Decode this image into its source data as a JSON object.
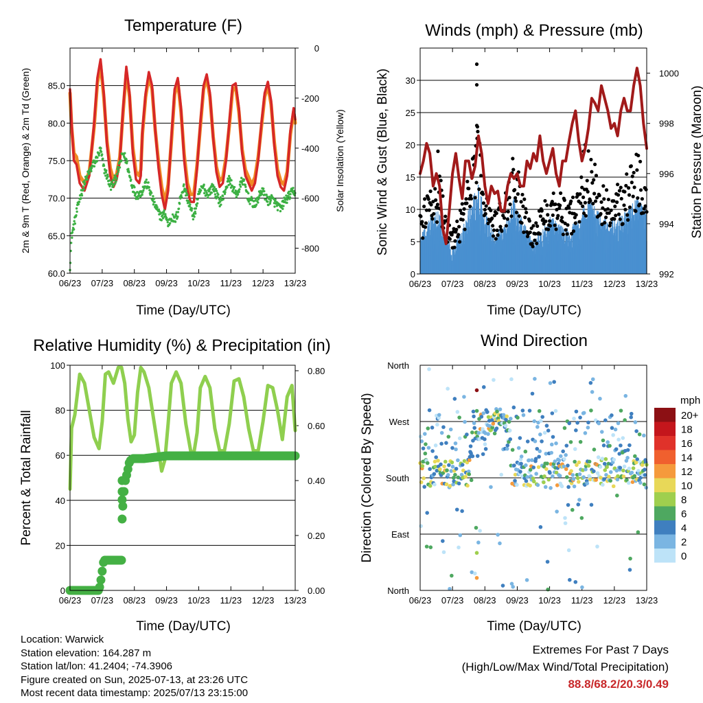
{
  "colors": {
    "temp_2m": "#d62728",
    "temp_9m": "#f08a24",
    "dewpoint": "#3cb043",
    "wind": "#4a90d0",
    "gust": "#000000",
    "pressure": "#a11a1a",
    "rh": "#8fcf4f",
    "precip": "#44b044",
    "extremes": "#c8282a"
  },
  "time_ticks": [
    "06/23",
    "07/23",
    "08/23",
    "09/23",
    "10/23",
    "11/23",
    "12/23",
    "13/23"
  ],
  "chart_data": [
    {
      "id": "temperature",
      "type": "line",
      "title": "Temperature (F)",
      "xlabel": "Time (Day/UTC)",
      "ylabel": "2m & 9m T (Red, Orange) & 2m Td (Green)",
      "ylabel_right": "Solar Insolation (Yellow)",
      "ylim": [
        60,
        90
      ],
      "y_ticks": [
        "60.0",
        "65.0",
        "70.0",
        "75.0",
        "80.0",
        "85.0"
      ],
      "y2lim": [
        -900,
        0
      ],
      "y2_ticks": [
        "-800",
        "-600",
        "-400",
        "-200",
        "0"
      ],
      "xlim": [
        6,
        13
      ],
      "series": [
        {
          "color_key": "temp_2m",
          "x": [
            6.0,
            6.05,
            6.12,
            6.2,
            6.3,
            6.45,
            6.6,
            6.75,
            6.85,
            6.95,
            7.05,
            7.15,
            7.25,
            7.35,
            7.45,
            7.55,
            7.65,
            7.75,
            7.85,
            7.95,
            8.05,
            8.15,
            8.2,
            8.25,
            8.35,
            8.45,
            8.55,
            8.65,
            8.75,
            8.85,
            8.95,
            9.05,
            9.15,
            9.25,
            9.35,
            9.45,
            9.55,
            9.65,
            9.75,
            9.85,
            9.95,
            10.05,
            10.15,
            10.25,
            10.35,
            10.45,
            10.55,
            10.65,
            10.75,
            10.85,
            10.95,
            11.05,
            11.15,
            11.25,
            11.35,
            11.45,
            11.55,
            11.65,
            11.75,
            11.85,
            11.95,
            12.05,
            12.15,
            12.25,
            12.35,
            12.45,
            12.55,
            12.65,
            12.75,
            12.85,
            12.95,
            13.0
          ],
          "y": [
            84.5,
            80,
            75,
            74.5,
            72,
            71,
            73,
            80,
            86,
            88.5,
            84,
            77,
            73,
            71.5,
            72.5,
            75,
            82,
            87.5,
            84,
            76,
            72.5,
            72,
            73,
            79,
            84,
            86.8,
            85,
            79,
            74,
            70.5,
            68.5,
            71,
            78,
            84.5,
            86,
            82,
            75,
            71,
            69.5,
            69.5,
            74,
            80,
            85,
            86.5,
            84,
            78,
            73.5,
            71.5,
            72,
            75,
            80,
            85,
            85.3,
            82,
            76,
            73,
            72,
            71,
            72,
            75,
            80,
            84,
            85.5,
            83,
            77,
            73,
            71.5,
            71,
            73,
            79,
            82,
            80.5
          ]
        },
        {
          "color_key": "temp_9m",
          "x": [
            6.0,
            6.05,
            6.12,
            6.2,
            6.3,
            6.45,
            6.6,
            6.75,
            6.85,
            6.95,
            7.05,
            7.15,
            7.25,
            7.35,
            7.45,
            7.55,
            7.65,
            7.75,
            7.85,
            7.95,
            8.05,
            8.15,
            8.2,
            8.25,
            8.35,
            8.45,
            8.55,
            8.65,
            8.75,
            8.85,
            8.95,
            9.05,
            9.15,
            9.25,
            9.35,
            9.45,
            9.55,
            9.65,
            9.75,
            9.85,
            9.95,
            10.05,
            10.15,
            10.25,
            10.35,
            10.45,
            10.55,
            10.65,
            10.75,
            10.85,
            10.95,
            11.05,
            11.15,
            11.25,
            11.35,
            11.45,
            11.55,
            11.65,
            11.75,
            11.85,
            11.95,
            12.05,
            12.15,
            12.25,
            12.35,
            12.45,
            12.55,
            12.65,
            12.75,
            12.85,
            12.95,
            13.0
          ],
          "y": [
            84,
            79.5,
            76,
            75.5,
            73,
            72,
            73.5,
            79.5,
            85.3,
            87.8,
            83.5,
            77.5,
            74,
            72.5,
            73.2,
            75.5,
            81.5,
            86.8,
            83.5,
            76.8,
            73.5,
            73,
            73.8,
            78.5,
            83.5,
            86.2,
            84.5,
            79,
            74.8,
            71.5,
            69.5,
            71.8,
            77.5,
            83.8,
            85.5,
            81.5,
            75.8,
            72,
            70.5,
            70.5,
            74.5,
            79.5,
            84.5,
            86,
            83.5,
            78.2,
            74.2,
            72.3,
            72.8,
            75.5,
            79.5,
            84.3,
            84.8,
            81.5,
            76.5,
            73.8,
            72.8,
            71.8,
            72.8,
            75.5,
            79.5,
            83.5,
            85,
            82.5,
            77.5,
            73.8,
            72.3,
            71.8,
            73.5,
            78.5,
            81.5,
            80
          ]
        },
        {
          "color_key": "dewpoint",
          "x": [
            6.0,
            6.05,
            6.1,
            6.2,
            6.3,
            6.45,
            6.6,
            6.8,
            6.95,
            7.05,
            7.15,
            7.25,
            7.35,
            7.45,
            7.55,
            7.65,
            7.75,
            7.85,
            7.95,
            8.05,
            8.15,
            8.25,
            8.35,
            8.45,
            8.55,
            8.65,
            8.75,
            8.85,
            8.95,
            9.05,
            9.15,
            9.25,
            9.35,
            9.45,
            9.55,
            9.65,
            9.75,
            9.85,
            9.95,
            10.05,
            10.15,
            10.25,
            10.35,
            10.45,
            10.55,
            10.65,
            10.75,
            10.85,
            10.95,
            11.05,
            11.15,
            11.25,
            11.35,
            11.45,
            11.55,
            11.65,
            11.75,
            11.85,
            11.95,
            12.05,
            12.15,
            12.25,
            12.35,
            12.45,
            12.55,
            12.65,
            12.75,
            12.85,
            12.95,
            13.0
          ],
          "y": [
            61,
            65,
            66,
            68,
            70,
            72,
            73.5,
            75,
            76.5,
            74,
            73,
            71.5,
            72,
            73,
            74.5,
            76,
            75,
            73,
            71.5,
            70.5,
            70.5,
            71,
            72,
            71.5,
            70,
            69,
            68,
            67.5,
            68,
            66.5,
            67.5,
            67,
            68,
            70.5,
            71.5,
            70,
            68.5,
            67.5,
            69.5,
            71,
            71.5,
            70.5,
            71,
            71.5,
            70.5,
            69.5,
            70,
            71.5,
            72.5,
            71.5,
            70.5,
            71,
            72.5,
            71.5,
            70,
            69.5,
            69,
            70,
            71,
            70.5,
            69.5,
            70,
            69.5,
            69,
            68.5,
            69.5,
            70,
            70.5,
            71,
            70.5
          ]
        }
      ]
    },
    {
      "id": "winds",
      "type": "scatter",
      "title": "Winds (mph) & Pressure (mb)",
      "xlabel": "Time (Day/UTC)",
      "ylabel": "Sonic Wind & Gust (Blue, Black)",
      "ylabel_right": "Station Pressure (Maroon)",
      "ylim": [
        0,
        35
      ],
      "y_ticks": [
        "0",
        "5",
        "10",
        "15",
        "20",
        "25",
        "30"
      ],
      "y2lim": [
        992,
        1001
      ],
      "y2_ticks": [
        "992",
        "994",
        "996",
        "998",
        "1000"
      ],
      "xlim": [
        6,
        13
      ],
      "series": [
        {
          "color_key": "pressure",
          "x": [
            6.0,
            6.1,
            6.2,
            6.3,
            6.4,
            6.5,
            6.6,
            6.7,
            6.8,
            6.9,
            7.0,
            7.1,
            7.2,
            7.3,
            7.4,
            7.5,
            7.6,
            7.7,
            7.8,
            7.9,
            8.0,
            8.1,
            8.2,
            8.3,
            8.4,
            8.5,
            8.6,
            8.7,
            8.8,
            8.9,
            9.0,
            9.1,
            9.2,
            9.3,
            9.4,
            9.5,
            9.6,
            9.7,
            9.8,
            9.9,
            10.0,
            10.1,
            10.2,
            10.3,
            10.4,
            10.5,
            10.6,
            10.7,
            10.8,
            10.9,
            11.0,
            11.1,
            11.2,
            11.3,
            11.4,
            11.5,
            11.6,
            11.7,
            11.8,
            11.9,
            12.0,
            12.1,
            12.2,
            12.3,
            12.4,
            12.5,
            12.6,
            12.7,
            12.8,
            12.9,
            13.0
          ],
          "y": [
            996,
            996.5,
            997.2,
            996.8,
            995.5,
            996,
            995.5,
            993.8,
            993.2,
            994.5,
            996,
            996.8,
            995.8,
            995,
            996.5,
            996.5,
            995.8,
            996.3,
            997.5,
            996.8,
            995.5,
            994.8,
            995.5,
            995.2,
            995.3,
            994.5,
            994.5,
            995.5,
            996,
            995.8,
            996,
            995.5,
            995.5,
            996.5,
            996.2,
            996.8,
            996.5,
            997.5,
            996.5,
            996,
            996.5,
            997,
            996,
            995.5,
            996.5,
            996.5,
            997.3,
            998,
            998.5,
            997.3,
            996.5,
            997,
            997.8,
            999,
            998.8,
            998.5,
            999.5,
            999,
            998.5,
            997.8,
            998,
            997.5,
            998.5,
            999,
            998.5,
            998.5,
            999.5,
            1000.2,
            999.5,
            998,
            997
          ]
        },
        {
          "color_key": "wind",
          "name": ""
        },
        {
          "color_key": "gust",
          "name": ""
        }
      ]
    },
    {
      "id": "humidity",
      "type": "line",
      "title": "Relative Humidity (%) & Precipitation (in)",
      "xlabel": "Time (Day/UTC)",
      "ylabel": "Percent & Total Rainfall",
      "ylim": [
        0,
        100
      ],
      "y_ticks": [
        "0",
        "20",
        "40",
        "60",
        "80",
        "100"
      ],
      "y2lim": [
        0,
        0.82
      ],
      "y2_ticks": [
        "0.00",
        "0.20",
        "0.40",
        "0.60",
        "0.80"
      ],
      "xlim": [
        6,
        13
      ],
      "series": [
        {
          "color_key": "rh",
          "x": [
            6.0,
            6.05,
            6.15,
            6.3,
            6.45,
            6.6,
            6.75,
            6.9,
            7.0,
            7.1,
            7.2,
            7.35,
            7.5,
            7.6,
            7.7,
            7.8,
            7.9,
            8.0,
            8.1,
            8.2,
            8.3,
            8.45,
            8.6,
            8.75,
            8.85,
            8.95,
            9.05,
            9.15,
            9.3,
            9.45,
            9.6,
            9.75,
            9.85,
            9.95,
            10.05,
            10.2,
            10.35,
            10.5,
            10.65,
            10.8,
            10.95,
            11.1,
            11.25,
            11.4,
            11.55,
            11.7,
            11.85,
            12.0,
            12.15,
            12.3,
            12.45,
            12.6,
            12.75,
            12.9,
            13.0
          ],
          "y": [
            45,
            72,
            78,
            96,
            92,
            80,
            68,
            63,
            75,
            96,
            97,
            92,
            99,
            99,
            92,
            76,
            66,
            69,
            88,
            99,
            97,
            90,
            76,
            62,
            53,
            58,
            74,
            92,
            97,
            92,
            74,
            62,
            61,
            70,
            90,
            95,
            90,
            72,
            62,
            62,
            74,
            93,
            94,
            86,
            72,
            62,
            62,
            75,
            91,
            90,
            80,
            67,
            86,
            91,
            71
          ]
        },
        {
          "color_key": "precip",
          "x": [
            6.0,
            6.5,
            6.9,
            6.95,
            7.0,
            7.05,
            7.5,
            7.6,
            7.62,
            7.65,
            7.68,
            7.72,
            7.78,
            7.85,
            7.95,
            8.3,
            9.0,
            10.0,
            11.0,
            12.0,
            13.0
          ],
          "y": [
            0,
            0,
            0,
            0.03,
            0.07,
            0.11,
            0.11,
            0.11,
            0.26,
            0.33,
            0.36,
            0.4,
            0.43,
            0.47,
            0.48,
            0.48,
            0.49,
            0.49,
            0.49,
            0.49,
            0.49
          ]
        }
      ]
    },
    {
      "id": "direction",
      "type": "scatter",
      "title": "Wind Direction",
      "xlabel": "Time (Day/UTC)",
      "ylabel": "Direction (Colored By Speed)",
      "y_ticks": [
        "North",
        "East",
        "South",
        "West",
        "North"
      ],
      "ylim": [
        0,
        360
      ],
      "xlim": [
        6,
        13
      ],
      "legend_title": "mph",
      "legend_labels": [
        "20+",
        "18",
        "16",
        "14",
        "12",
        "10",
        "8",
        "6",
        "4",
        "2",
        "0"
      ],
      "legend_colors": [
        "#8c1014",
        "#c4161c",
        "#e0322a",
        "#f0602e",
        "#f59a3c",
        "#e8d858",
        "#9fcf4e",
        "#4ea860",
        "#3f7fbf",
        "#7ab5e2",
        "#bde3f8"
      ],
      "legend_placement": "right"
    }
  ],
  "info": {
    "location": "Location: Warwick",
    "elevation": "Station elevation: 164.287 m",
    "latlon": "Station lat/lon: 41.2404; -74.3906",
    "created": "Figure created on Sun, 2025-07-13, at 23:26 UTC",
    "timestamp": "Most recent data timestamp: 2025/07/13 23:15:00"
  },
  "extremes": {
    "title": "Extremes For Past 7 Days",
    "subtitle": "(High/Low/Max Wind/Total Precipitation)",
    "values": "88.8/68.2/20.3/0.49"
  }
}
